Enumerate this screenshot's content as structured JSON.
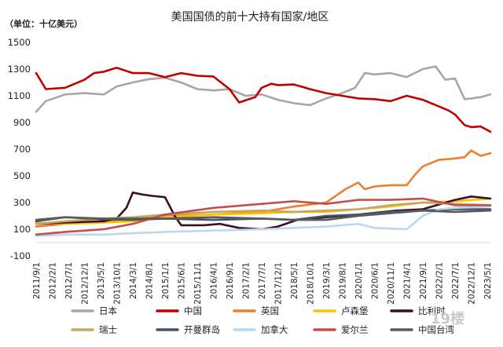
{
  "chart_data": {
    "type": "line",
    "title": "美国国债的前十大持有国家/地区",
    "unit_label": "（单位：十亿美元）",
    "ylim": [
      -100,
      1500
    ],
    "yticks": [
      -100,
      100,
      300,
      500,
      700,
      900,
      1100,
      1300,
      1500
    ],
    "x_start": "2011-09",
    "x_end": "2023-06",
    "x_ticks": [
      "2011/9/1",
      "2012/2/1",
      "2012/7/1",
      "2012/12/1",
      "2013/5/1",
      "2013/10/1",
      "2014/3/1",
      "2014/8/1",
      "2015/1/1",
      "2015/6/1",
      "2015/11/1",
      "2016/4/1",
      "2016/9/1",
      "2017/2/1",
      "2017/7/1",
      "2017/12/1",
      "2018/5/1",
      "2018/10/1",
      "2019/3/1",
      "2019/8/1",
      "2020/1/1",
      "2020/6/1",
      "2020/11/1",
      "2021/4/1",
      "2021/9/1",
      "2022/2/1",
      "2022/7/1",
      "2022/12/1",
      "2023/5/1"
    ],
    "legend_position": "bottom",
    "grid": false,
    "series": [
      {
        "name": "日本",
        "color": "#a6a6a6",
        "points": [
          [
            "2011-09",
            980
          ],
          [
            "2011-12",
            1060
          ],
          [
            "2012-06",
            1110
          ],
          [
            "2012-12",
            1120
          ],
          [
            "2013-06",
            1110
          ],
          [
            "2013-10",
            1170
          ],
          [
            "2014-03",
            1200
          ],
          [
            "2014-08",
            1225
          ],
          [
            "2015-01",
            1235
          ],
          [
            "2015-06",
            1200
          ],
          [
            "2015-11",
            1150
          ],
          [
            "2016-04",
            1140
          ],
          [
            "2016-09",
            1150
          ],
          [
            "2017-02",
            1100
          ],
          [
            "2017-07",
            1110
          ],
          [
            "2017-12",
            1070
          ],
          [
            "2018-05",
            1045
          ],
          [
            "2018-10",
            1030
          ],
          [
            "2019-03",
            1080
          ],
          [
            "2019-08",
            1120
          ],
          [
            "2019-12",
            1160
          ],
          [
            "2020-03",
            1270
          ],
          [
            "2020-06",
            1260
          ],
          [
            "2020-11",
            1270
          ],
          [
            "2021-04",
            1240
          ],
          [
            "2021-09",
            1300
          ],
          [
            "2022-01",
            1320
          ],
          [
            "2022-04",
            1220
          ],
          [
            "2022-07",
            1230
          ],
          [
            "2022-10",
            1075
          ],
          [
            "2022-12",
            1080
          ],
          [
            "2023-03",
            1090
          ],
          [
            "2023-06",
            1110
          ]
        ]
      },
      {
        "name": "中国",
        "color": "#c00000",
        "points": [
          [
            "2011-09",
            1270
          ],
          [
            "2011-12",
            1150
          ],
          [
            "2012-06",
            1160
          ],
          [
            "2012-12",
            1220
          ],
          [
            "2013-03",
            1270
          ],
          [
            "2013-06",
            1280
          ],
          [
            "2013-10",
            1310
          ],
          [
            "2014-03",
            1270
          ],
          [
            "2014-08",
            1270
          ],
          [
            "2015-01",
            1240
          ],
          [
            "2015-06",
            1270
          ],
          [
            "2015-11",
            1250
          ],
          [
            "2016-04",
            1245
          ],
          [
            "2016-09",
            1150
          ],
          [
            "2016-12",
            1050
          ],
          [
            "2017-05",
            1090
          ],
          [
            "2017-07",
            1160
          ],
          [
            "2017-10",
            1190
          ],
          [
            "2017-12",
            1180
          ],
          [
            "2018-05",
            1185
          ],
          [
            "2018-10",
            1150
          ],
          [
            "2019-03",
            1120
          ],
          [
            "2019-08",
            1100
          ],
          [
            "2020-01",
            1080
          ],
          [
            "2020-06",
            1075
          ],
          [
            "2020-11",
            1060
          ],
          [
            "2021-04",
            1100
          ],
          [
            "2021-09",
            1070
          ],
          [
            "2022-02",
            1020
          ],
          [
            "2022-05",
            990
          ],
          [
            "2022-07",
            960
          ],
          [
            "2022-10",
            880
          ],
          [
            "2022-12",
            865
          ],
          [
            "2023-03",
            870
          ],
          [
            "2023-06",
            830
          ]
        ]
      },
      {
        "name": "英国",
        "color": "#ed7d31",
        "points": [
          [
            "2011-09",
            120
          ],
          [
            "2012-06",
            140
          ],
          [
            "2013-06",
            160
          ],
          [
            "2014-03",
            180
          ],
          [
            "2015-01",
            200
          ],
          [
            "2016-04",
            210
          ],
          [
            "2017-07",
            230
          ],
          [
            "2018-05",
            270
          ],
          [
            "2019-03",
            300
          ],
          [
            "2019-06",
            350
          ],
          [
            "2019-09",
            400
          ],
          [
            "2020-01",
            450
          ],
          [
            "2020-03",
            400
          ],
          [
            "2020-06",
            420
          ],
          [
            "2020-11",
            430
          ],
          [
            "2021-04",
            430
          ],
          [
            "2021-07",
            520
          ],
          [
            "2021-09",
            570
          ],
          [
            "2022-02",
            620
          ],
          [
            "2022-07",
            630
          ],
          [
            "2022-10",
            640
          ],
          [
            "2022-12",
            690
          ],
          [
            "2023-03",
            650
          ],
          [
            "2023-06",
            670
          ]
        ]
      },
      {
        "name": "卢森堡",
        "color": "#ffc000",
        "points": [
          [
            "2011-09",
            150
          ],
          [
            "2012-06",
            140
          ],
          [
            "2013-06",
            150
          ],
          [
            "2014-03",
            160
          ],
          [
            "2015-01",
            190
          ],
          [
            "2016-04",
            210
          ],
          [
            "2017-07",
            220
          ],
          [
            "2018-05",
            230
          ],
          [
            "2019-03",
            230
          ],
          [
            "2020-01",
            250
          ],
          [
            "2020-11",
            270
          ],
          [
            "2021-09",
            300
          ],
          [
            "2022-07",
            310
          ],
          [
            "2023-06",
            330
          ]
        ]
      },
      {
        "name": "比利时",
        "color": "#3b0f24",
        "points": [
          [
            "2011-09",
            140
          ],
          [
            "2012-06",
            150
          ],
          [
            "2013-06",
            160
          ],
          [
            "2013-10",
            180
          ],
          [
            "2014-01",
            260
          ],
          [
            "2014-03",
            375
          ],
          [
            "2014-06",
            360
          ],
          [
            "2014-09",
            350
          ],
          [
            "2015-01",
            340
          ],
          [
            "2015-04",
            200
          ],
          [
            "2015-06",
            130
          ],
          [
            "2016-01",
            130
          ],
          [
            "2016-06",
            140
          ],
          [
            "2016-12",
            110
          ],
          [
            "2017-07",
            100
          ],
          [
            "2017-12",
            120
          ],
          [
            "2018-06",
            170
          ],
          [
            "2019-03",
            190
          ],
          [
            "2020-01",
            210
          ],
          [
            "2021-01",
            240
          ],
          [
            "2021-09",
            250
          ],
          [
            "2022-07",
            320
          ],
          [
            "2022-12",
            345
          ],
          [
            "2023-06",
            330
          ]
        ]
      },
      {
        "name": "瑞士",
        "color": "#c2a863",
        "points": [
          [
            "2011-09",
            140
          ],
          [
            "2012-06",
            160
          ],
          [
            "2013-06",
            180
          ],
          [
            "2014-03",
            190
          ],
          [
            "2015-01",
            210
          ],
          [
            "2016-04",
            230
          ],
          [
            "2017-07",
            240
          ],
          [
            "2018-05",
            230
          ],
          [
            "2019-03",
            240
          ],
          [
            "2020-01",
            250
          ],
          [
            "2020-11",
            280
          ],
          [
            "2021-09",
            300
          ],
          [
            "2022-07",
            290
          ],
          [
            "2023-06",
            280
          ]
        ]
      },
      {
        "name": "开曼群岛",
        "color": "#44546a",
        "points": [
          [
            "2011-09",
            160
          ],
          [
            "2012-06",
            190
          ],
          [
            "2013-06",
            175
          ],
          [
            "2014-03",
            170
          ],
          [
            "2015-01",
            180
          ],
          [
            "2016-04",
            170
          ],
          [
            "2017-07",
            180
          ],
          [
            "2018-05",
            170
          ],
          [
            "2019-03",
            200
          ],
          [
            "2020-01",
            210
          ],
          [
            "2020-11",
            230
          ],
          [
            "2021-09",
            240
          ],
          [
            "2022-07",
            250
          ],
          [
            "2023-06",
            250
          ]
        ]
      },
      {
        "name": "加拿大",
        "color": "#bdd7ee",
        "points": [
          [
            "2011-09",
            50
          ],
          [
            "2012-06",
            60
          ],
          [
            "2013-06",
            60
          ],
          [
            "2014-03",
            70
          ],
          [
            "2015-01",
            80
          ],
          [
            "2016-04",
            90
          ],
          [
            "2017-07",
            100
          ],
          [
            "2018-05",
            110
          ],
          [
            "2019-03",
            120
          ],
          [
            "2020-01",
            140
          ],
          [
            "2020-06",
            110
          ],
          [
            "2021-04",
            100
          ],
          [
            "2021-09",
            200
          ],
          [
            "2022-02",
            250
          ],
          [
            "2022-07",
            260
          ],
          [
            "2023-06",
            270
          ]
        ]
      },
      {
        "name": "爱尔兰",
        "color": "#c0504d",
        "points": [
          [
            "2011-09",
            60
          ],
          [
            "2012-06",
            80
          ],
          [
            "2013-06",
            100
          ],
          [
            "2014-03",
            140
          ],
          [
            "2015-01",
            210
          ],
          [
            "2016-04",
            260
          ],
          [
            "2017-07",
            290
          ],
          [
            "2018-05",
            310
          ],
          [
            "2019-03",
            290
          ],
          [
            "2020-01",
            320
          ],
          [
            "2020-11",
            320
          ],
          [
            "2021-09",
            330
          ],
          [
            "2022-07",
            280
          ],
          [
            "2023-06",
            280
          ]
        ]
      },
      {
        "name": "中国台湾",
        "color": "#5a5a5a",
        "points": [
          [
            "2011-09",
            170
          ],
          [
            "2012-06",
            190
          ],
          [
            "2013-06",
            180
          ],
          [
            "2014-03",
            180
          ],
          [
            "2015-01",
            180
          ],
          [
            "2016-04",
            190
          ],
          [
            "2017-07",
            180
          ],
          [
            "2018-05",
            170
          ],
          [
            "2019-03",
            170
          ],
          [
            "2020-01",
            200
          ],
          [
            "2020-11",
            220
          ],
          [
            "2021-09",
            240
          ],
          [
            "2022-07",
            230
          ],
          [
            "2023-06",
            240
          ]
        ]
      }
    ]
  },
  "watermark": "19楼"
}
